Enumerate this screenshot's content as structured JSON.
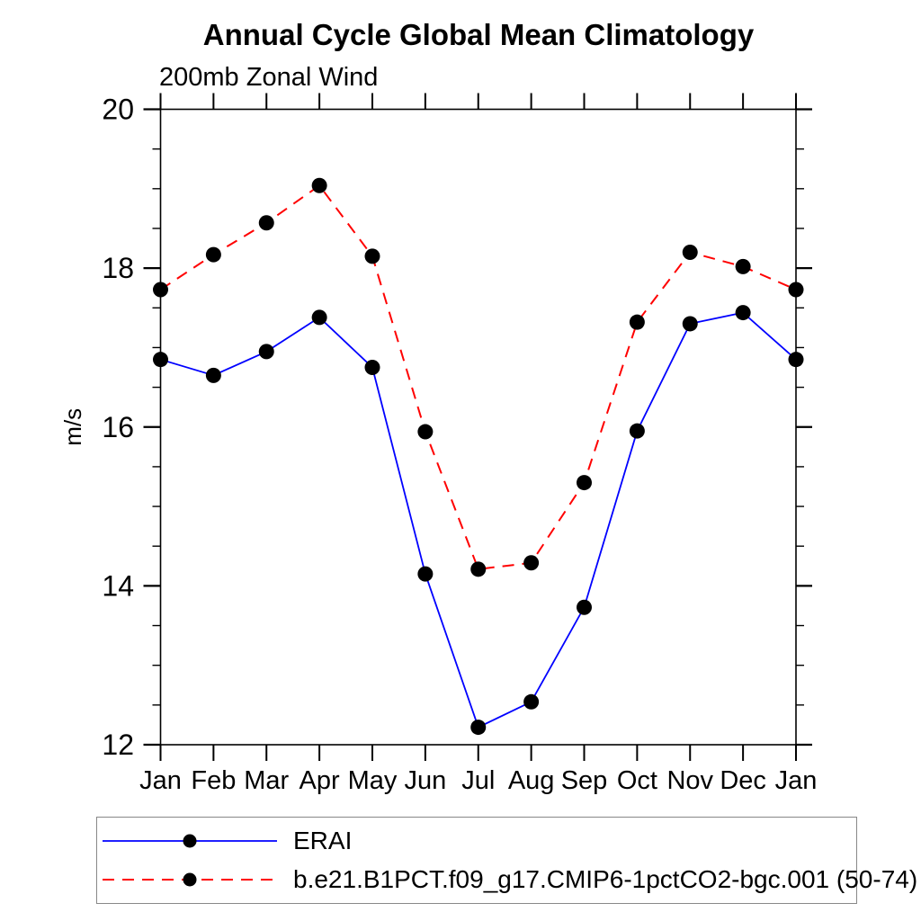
{
  "chart_data": {
    "type": "line",
    "title": "Annual Cycle Global Mean Climatology",
    "subtitle": "200mb Zonal Wind",
    "ylabel": "m/s",
    "xlabel": "",
    "categories": [
      "Jan",
      "Feb",
      "Mar",
      "Apr",
      "May",
      "Jun",
      "Jul",
      "Aug",
      "Sep",
      "Oct",
      "Nov",
      "Dec",
      "Jan"
    ],
    "ylim": [
      12,
      20
    ],
    "yticks": [
      20,
      18,
      16,
      14,
      12
    ],
    "y_minor_step": 0.5,
    "grid": false,
    "legend_position": "bottom-outside",
    "series": [
      {
        "name": "ERAI",
        "line_color": "#0000ff",
        "line_style": "solid",
        "marker": "filled-circle",
        "marker_color": "#000000",
        "values": [
          16.85,
          16.65,
          16.95,
          17.38,
          16.75,
          14.15,
          12.22,
          12.54,
          13.73,
          15.95,
          17.3,
          17.44,
          16.85
        ]
      },
      {
        "name": "b.e21.B1PCT.f09_g17.CMIP6-1pctCO2-bgc.001 (50-74)",
        "line_color": "#ff0000",
        "line_style": "dashed",
        "marker": "filled-circle",
        "marker_color": "#000000",
        "values": [
          17.73,
          18.17,
          18.57,
          19.04,
          18.15,
          15.94,
          14.21,
          14.29,
          15.3,
          17.32,
          18.2,
          18.02,
          17.73
        ]
      }
    ]
  }
}
